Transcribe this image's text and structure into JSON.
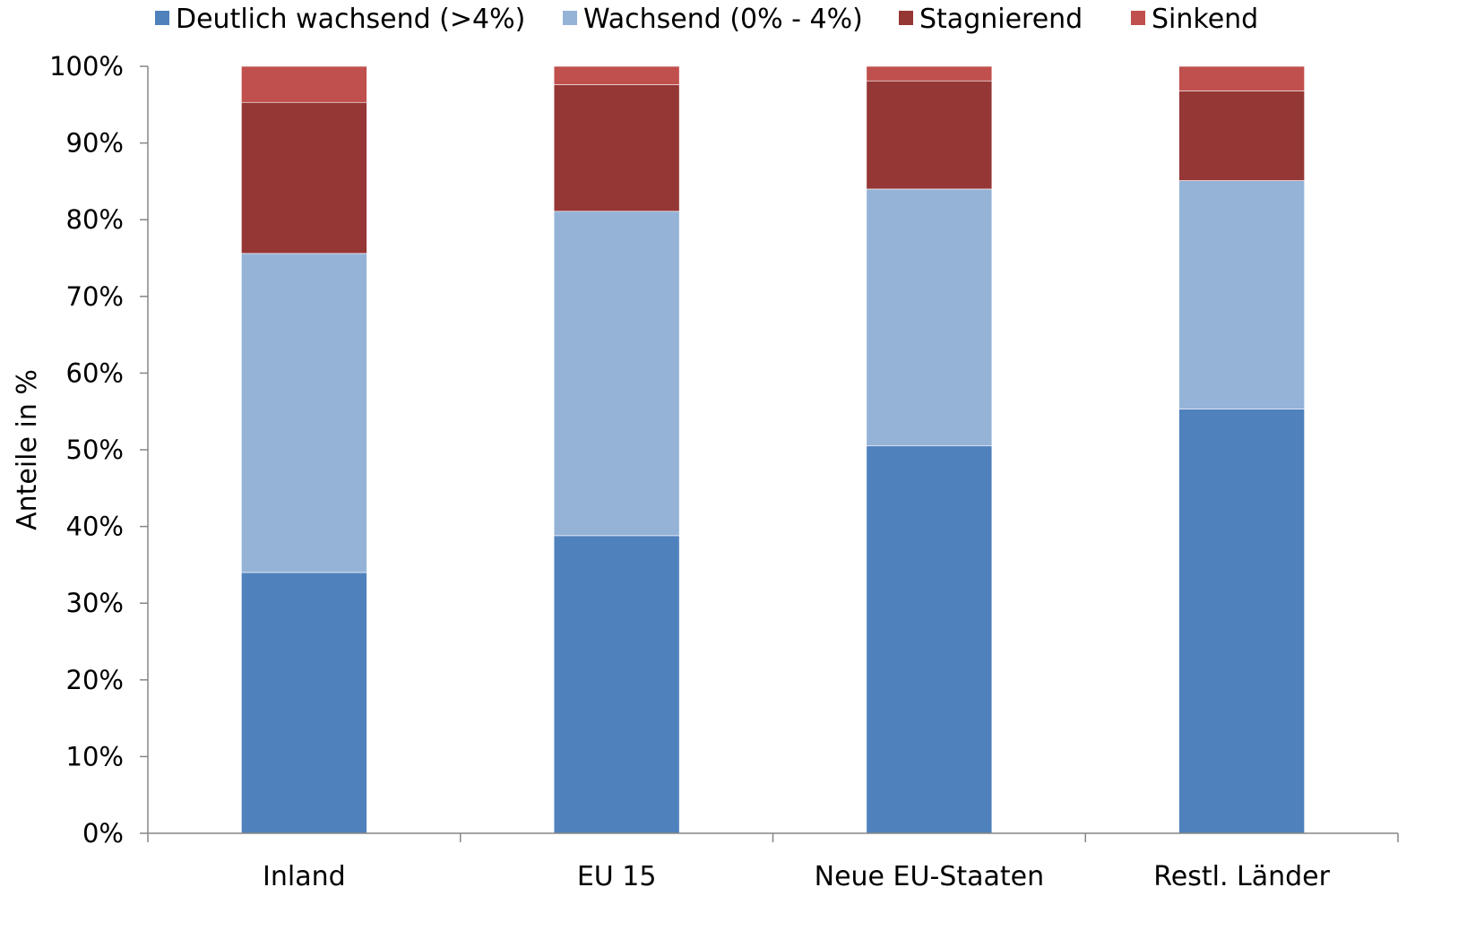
{
  "chart_data": {
    "type": "bar",
    "stacked": true,
    "percent_stacked": true,
    "categories": [
      "Inland",
      "EU 15",
      "Neue EU-Staaten",
      "Restl. Länder"
    ],
    "series": [
      {
        "name": "Deutlich wachsend (>4%)",
        "color": "#4F81BD",
        "values": [
          34.0,
          38.8,
          50.5,
          55.3
        ]
      },
      {
        "name": "Wachsend (0% - 4%)",
        "color": "#95B3D7",
        "values": [
          41.6,
          42.3,
          33.5,
          29.8
        ]
      },
      {
        "name": "Stagnierend",
        "color": "#953735",
        "values": [
          19.7,
          16.5,
          14.1,
          11.7
        ]
      },
      {
        "name": "Sinkend",
        "color": "#C0504D",
        "values": [
          4.7,
          2.4,
          1.9,
          3.2
        ]
      }
    ],
    "ylabel": "Anteile in %",
    "xlabel": "",
    "ylim": [
      0,
      100
    ],
    "yticks": [
      "0%",
      "10%",
      "20%",
      "30%",
      "40%",
      "50%",
      "60%",
      "70%",
      "80%",
      "90%",
      "100%"
    ],
    "grid": false,
    "legend_position": "top"
  }
}
